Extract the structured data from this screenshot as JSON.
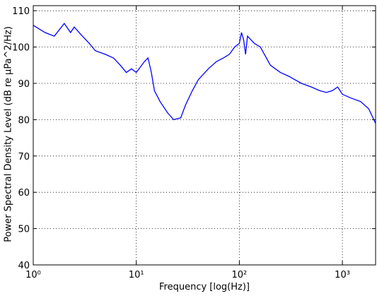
{
  "chart_data": {
    "type": "line",
    "x_label": "Frequency [log(Hz)]",
    "y_label": "Power Spectral Density Level (dB re µPa^2/Hz)",
    "x_scale": "log",
    "grid": true,
    "xlim": [
      1,
      2100
    ],
    "ylim": [
      40,
      111.4
    ],
    "xticks": [
      {
        "value": 1,
        "label": "10⁰"
      },
      {
        "value": 10,
        "label": "10¹"
      },
      {
        "value": 100,
        "label": "10²"
      },
      {
        "value": 1000,
        "label": "10³"
      }
    ],
    "yticks": [
      40,
      50,
      60,
      70,
      80,
      90,
      100,
      110
    ],
    "series": [
      {
        "color": "#0000ff",
        "x": [
          1,
          1.3,
          1.6,
          2.0,
          2.3,
          2.5,
          3,
          3.5,
          4,
          5,
          6,
          7,
          8,
          9,
          10,
          12,
          13,
          14,
          15,
          17,
          20,
          23,
          27,
          30,
          35,
          40,
          50,
          60,
          70,
          80,
          90,
          100,
          105,
          110,
          115,
          120,
          140,
          160,
          200,
          250,
          300,
          400,
          500,
          600,
          700,
          800,
          900,
          1000,
          1200,
          1500,
          1800,
          2100
        ],
        "values": [
          106,
          104,
          103,
          106.5,
          104,
          105.5,
          103,
          101,
          99,
          98,
          97,
          95,
          93,
          94,
          93,
          96,
          97,
          93,
          88,
          85,
          82,
          80,
          80.5,
          84,
          88,
          91,
          94,
          96,
          97,
          98,
          100,
          101,
          104,
          102,
          98,
          103,
          101,
          100,
          95,
          93,
          92,
          90,
          89,
          88,
          87.5,
          88,
          89,
          87,
          86,
          85,
          83,
          79
        ]
      }
    ]
  }
}
